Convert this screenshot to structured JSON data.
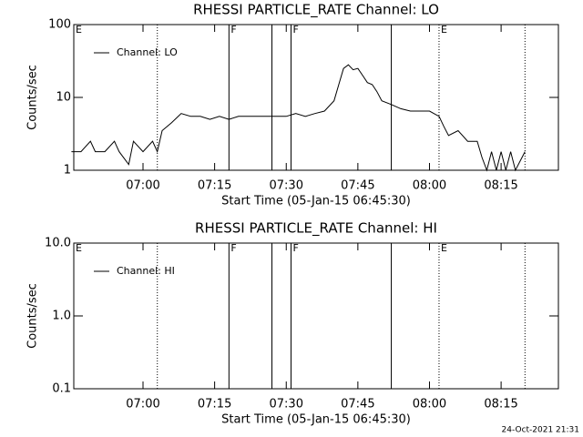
{
  "chart_data": [
    {
      "type": "line",
      "title": "RHESSI PARTICLE_RATE Channel: LO",
      "xlabel": "Start Time (05-Jan-15 06:45:30)",
      "ylabel": "Counts/sec",
      "log_y": true,
      "ylim": [
        1,
        100
      ],
      "yticks": [
        1,
        10,
        100
      ],
      "xlim": [
        "06:45:30",
        "08:27"
      ],
      "xticks": [
        "07:00",
        "07:15",
        "07:30",
        "07:45",
        "08:00",
        "08:15"
      ],
      "x": [
        "06:45",
        "06:47",
        "06:49",
        "06:50",
        "06:52",
        "06:54",
        "06:55",
        "06:57",
        "06:58",
        "07:00",
        "07:02",
        "07:03",
        "07:04",
        "07:06",
        "07:08",
        "07:10",
        "07:12",
        "07:14",
        "07:16",
        "07:18",
        "07:20",
        "07:22",
        "07:24",
        "07:26",
        "07:28",
        "07:30",
        "07:32",
        "07:34",
        "07:36",
        "07:38",
        "07:40",
        "07:41",
        "07:42",
        "07:43",
        "07:44",
        "07:45",
        "07:46",
        "07:47",
        "07:48",
        "07:49",
        "07:50",
        "07:52",
        "07:54",
        "07:56",
        "07:58",
        "08:00",
        "08:02",
        "08:03",
        "08:04",
        "08:06",
        "08:08",
        "08:10",
        "08:11",
        "08:12",
        "08:13",
        "08:14",
        "08:15",
        "08:16",
        "08:17",
        "08:18",
        "08:20"
      ],
      "series": [
        {
          "name": "Channel: LO",
          "color": "#000000",
          "values": [
            1.8,
            1.8,
            2.5,
            1.8,
            1.8,
            2.5,
            1.8,
            1.2,
            2.5,
            1.8,
            2.5,
            1.8,
            3.5,
            4.5,
            6,
            5.5,
            5.5,
            5,
            5.5,
            5,
            5.5,
            5.5,
            5.5,
            5.5,
            5.5,
            5.5,
            6,
            5.5,
            6,
            6.5,
            9,
            15,
            25,
            28,
            24,
            25,
            20,
            16,
            15,
            12,
            9,
            8,
            7,
            6.5,
            6.5,
            6.5,
            5.5,
            4,
            3,
            3.5,
            2.5,
            2.5,
            1.5,
            1,
            1.8,
            1,
            1.8,
            1,
            1.8,
            1,
            1.8
          ]
        }
      ],
      "flags": [
        {
          "x": "07:03",
          "style": "dotted"
        },
        {
          "x": "07:18",
          "style": "solid"
        },
        {
          "x": "07:27",
          "style": "solid"
        },
        {
          "x": "07:31",
          "style": "solid"
        },
        {
          "x": "07:52",
          "style": "solid"
        },
        {
          "x": "08:02",
          "style": "dotted"
        },
        {
          "x": "08:20",
          "style": "dotted"
        }
      ],
      "flag_labels": [
        {
          "x": "06:45:30",
          "text": "E"
        },
        {
          "x": "07:18",
          "text": "F"
        },
        {
          "x": "07:31",
          "text": "F"
        },
        {
          "x": "08:02",
          "text": "E"
        }
      ]
    },
    {
      "type": "line",
      "title": "RHESSI PARTICLE_RATE Channel: HI",
      "xlabel": "Start Time (05-Jan-15 06:45:30)",
      "ylabel": "Counts/sec",
      "log_y": true,
      "ylim": [
        0.1,
        10
      ],
      "yticks": [
        {
          "value": 0.1,
          "label": "0.1"
        },
        {
          "value": 1,
          "label": "1.0"
        },
        {
          "value": 10,
          "label": "10.0"
        }
      ],
      "xlim": [
        "06:45:30",
        "08:27"
      ],
      "xticks": [
        "07:00",
        "07:15",
        "07:30",
        "07:45",
        "08:00",
        "08:15"
      ],
      "x": [],
      "series": [
        {
          "name": "Channel: HI",
          "color": "#000000",
          "values": []
        }
      ],
      "flags": [
        {
          "x": "07:03",
          "style": "dotted"
        },
        {
          "x": "07:18",
          "style": "solid"
        },
        {
          "x": "07:27",
          "style": "solid"
        },
        {
          "x": "07:31",
          "style": "solid"
        },
        {
          "x": "07:52",
          "style": "solid"
        },
        {
          "x": "08:02",
          "style": "dotted"
        },
        {
          "x": "08:20",
          "style": "dotted"
        }
      ],
      "flag_labels": [
        {
          "x": "06:45:30",
          "text": "E"
        },
        {
          "x": "07:18",
          "text": "F"
        },
        {
          "x": "07:31",
          "text": "F"
        },
        {
          "x": "08:02",
          "text": "E"
        }
      ]
    }
  ],
  "footer": "24-Oct-2021 21:31"
}
